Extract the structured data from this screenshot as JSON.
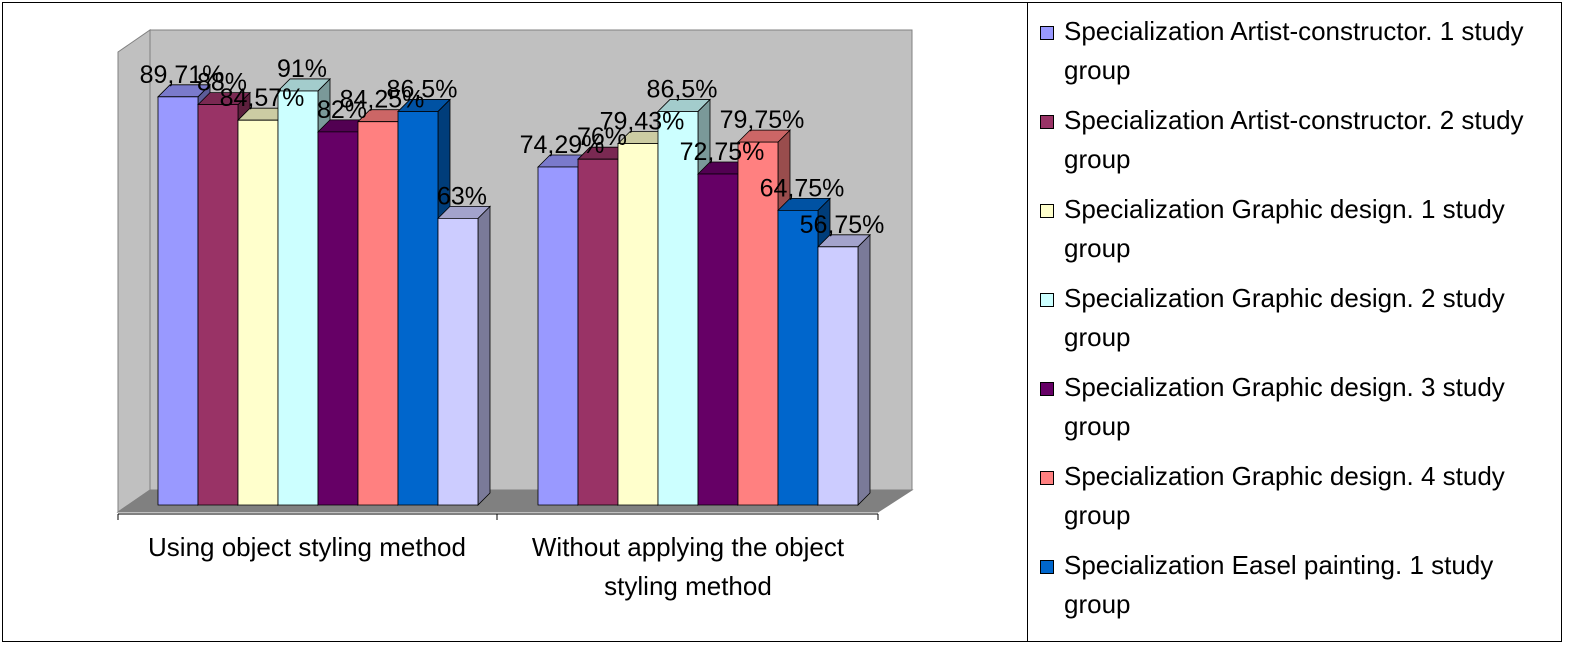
{
  "chart_data": {
    "type": "bar3d",
    "categories": [
      "Using object styling method",
      "Without applying the object styling method"
    ],
    "ylim": [
      0,
      100
    ],
    "series": [
      {
        "name": "Specialization Artist-constructor. 1 study group",
        "color": "#9999ff",
        "values": [
          89.71,
          74.29
        ],
        "value_labels": [
          "89,71%",
          "74,29%"
        ]
      },
      {
        "name": "Specialization Artist-constructor. 2 study group",
        "color": "#993366",
        "values": [
          88,
          76
        ],
        "value_labels": [
          "88%",
          "76%"
        ]
      },
      {
        "name": "Specialization Graphic design. 1 study group",
        "color": "#ffffcc",
        "values": [
          84.57,
          79.43
        ],
        "value_labels": [
          "84,57%",
          "79,43%"
        ]
      },
      {
        "name": "Specialization Graphic design. 2 study group",
        "color": "#ccffff",
        "values": [
          91,
          86.5
        ],
        "value_labels": [
          "91%",
          "86,5%"
        ]
      },
      {
        "name": "Specialization Graphic design. 3 study group",
        "color": "#660066",
        "values": [
          82,
          72.75
        ],
        "value_labels": [
          "82%",
          "72,75%"
        ]
      },
      {
        "name": "Specialization Graphic design. 4 study group",
        "color": "#ff8080",
        "values": [
          84.25,
          79.75
        ],
        "value_labels": [
          "84,25%",
          "79,75%"
        ]
      },
      {
        "name": "Specialization Easel painting. 1 study group",
        "color": "#0066cc",
        "values": [
          86.5,
          64.75
        ],
        "value_labels": [
          "86,5%",
          "64,75%"
        ]
      },
      {
        "color": "#ccccff",
        "values": [
          63,
          56.75
        ],
        "value_labels": [
          "63%",
          "56,75%"
        ]
      }
    ]
  }
}
